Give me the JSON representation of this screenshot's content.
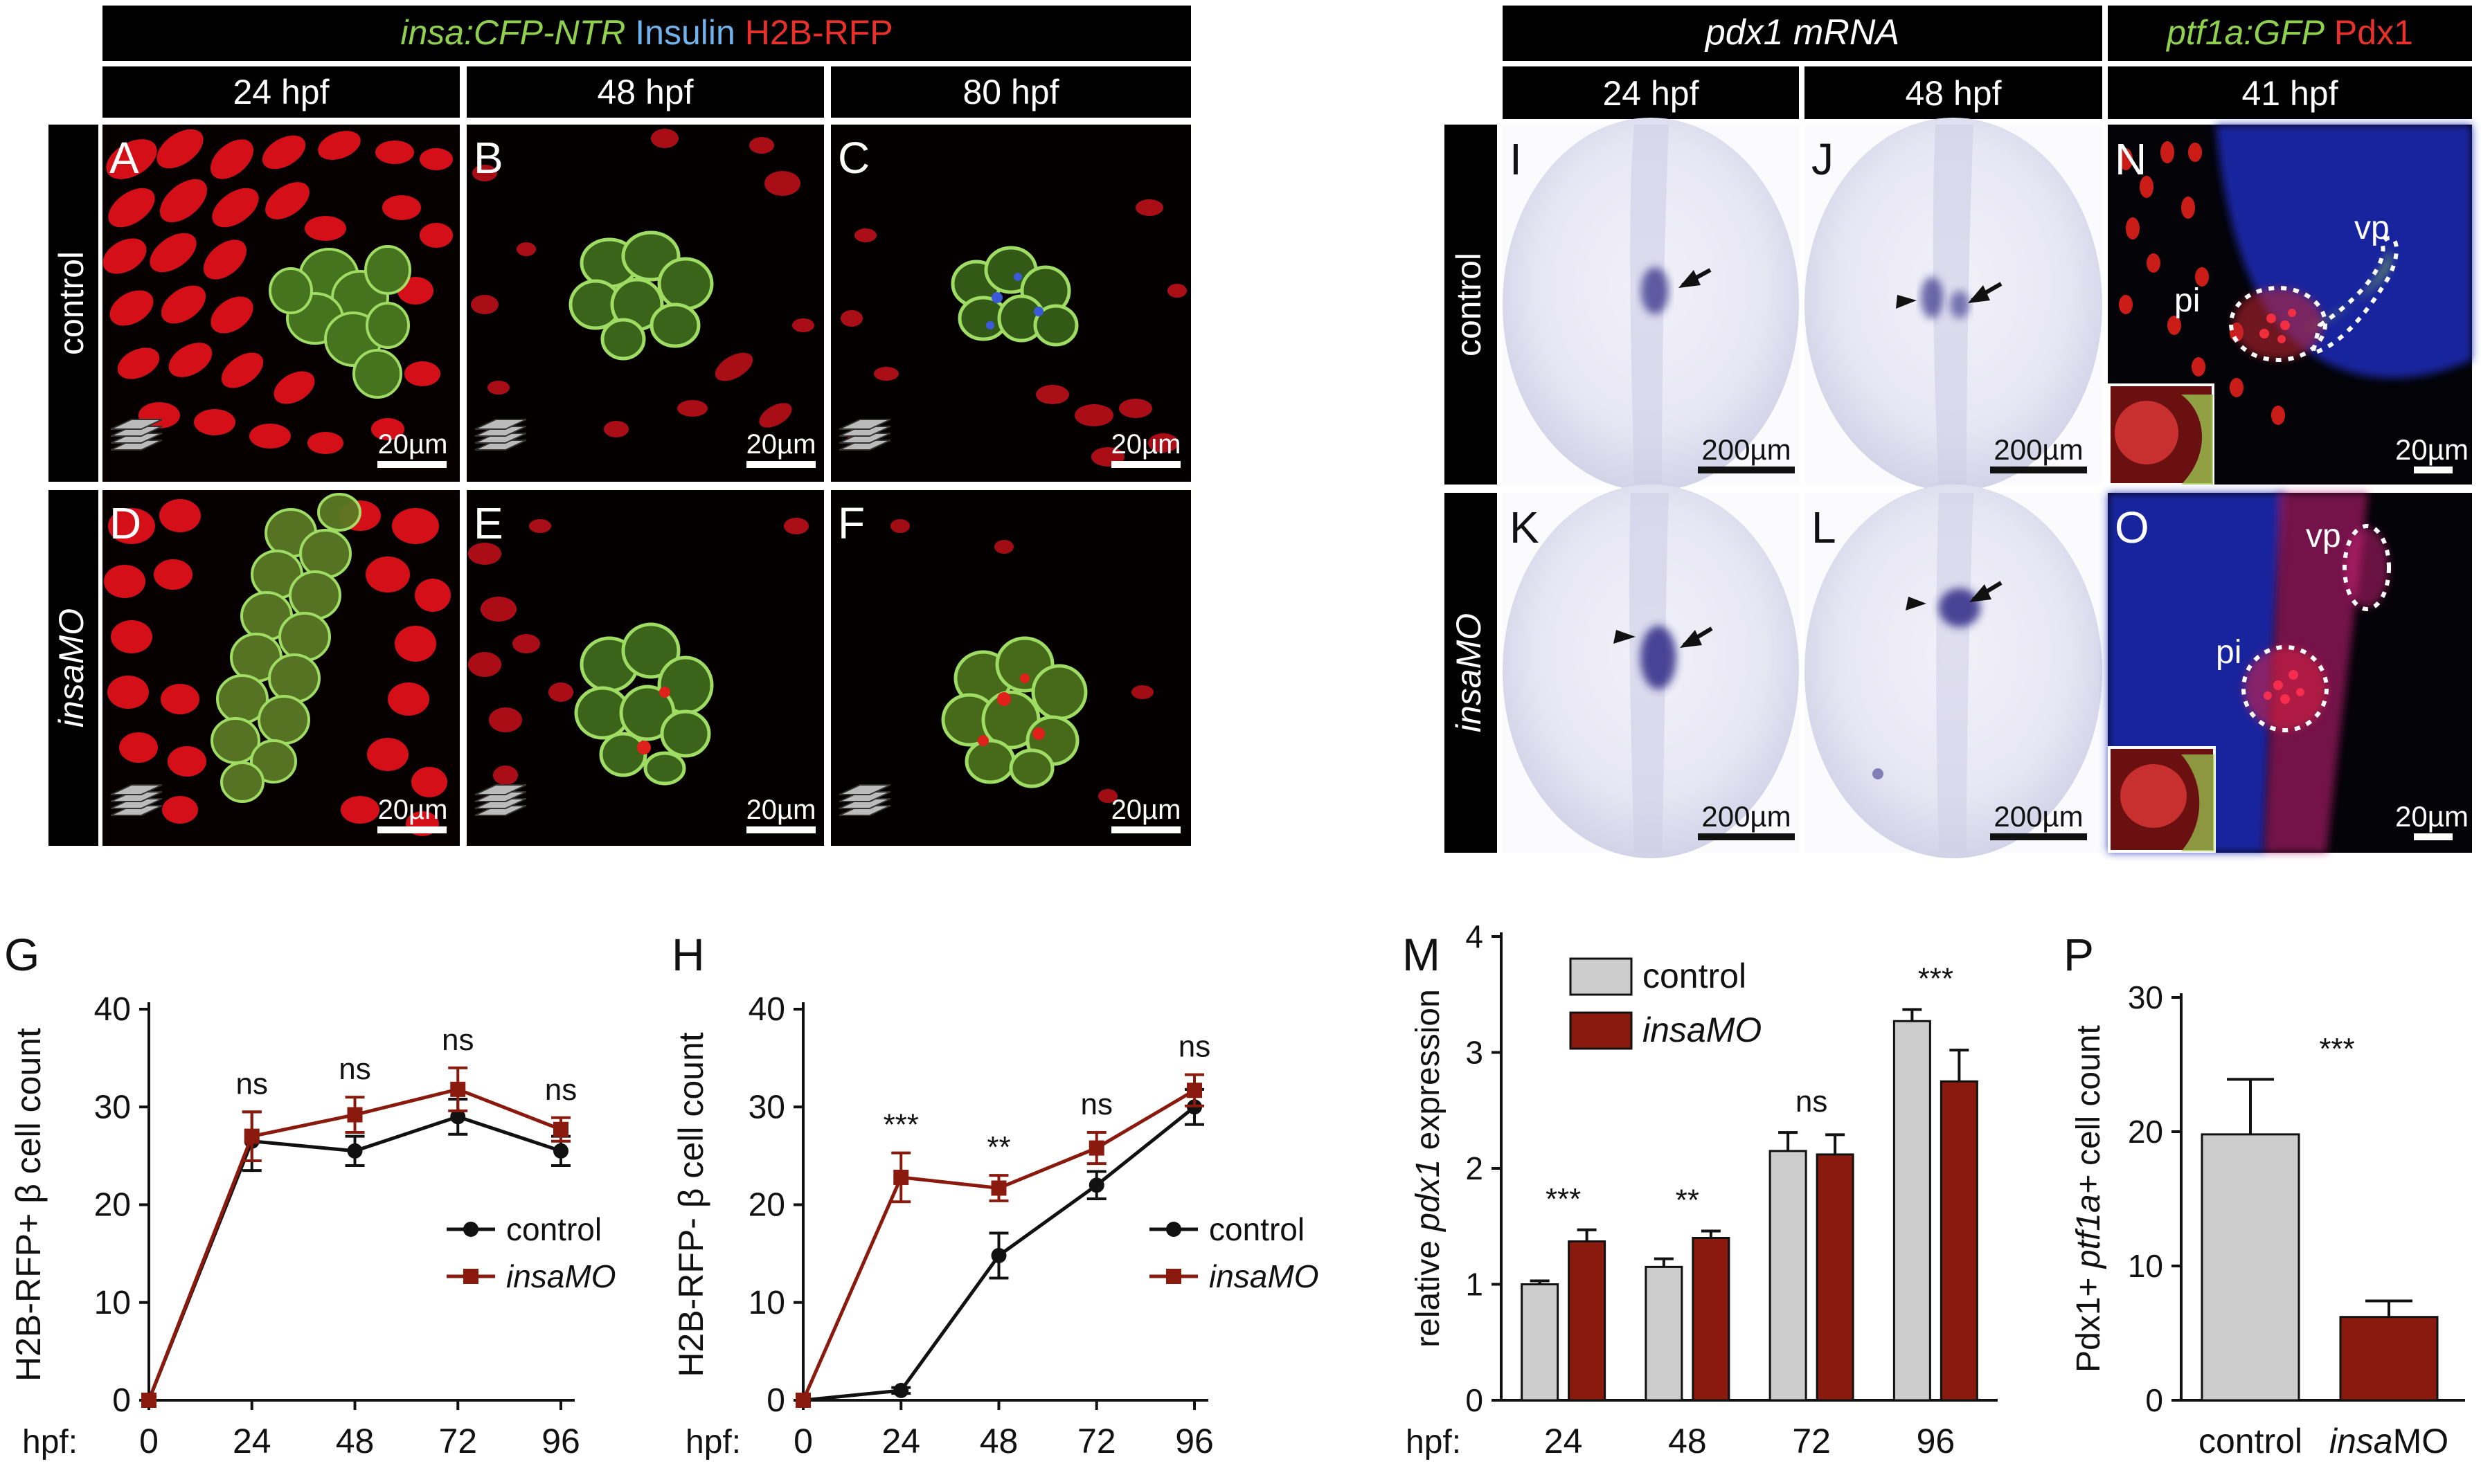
{
  "header": {
    "marker_a": "insa:CFP-NTR",
    "marker_b": "Insulin",
    "marker_c": "H2B-RFP",
    "time_24": "24 hpf",
    "time_48": "48 hpf",
    "time_80": "80 hpf",
    "pdx1_title": "pdx1 mRNA",
    "pdx1_24": "24 hpf",
    "pdx1_48": "48 hpf",
    "ptf_marker_a": "ptf1a:GFP",
    "ptf_marker_b": "Pdx1",
    "ptf_time": "41 hpf"
  },
  "rows": {
    "control": "control",
    "morphant": "insaMO"
  },
  "colors": {
    "green": "#8fd14f",
    "blue": "#6fb2ec",
    "red": "#e8312a",
    "dark_red": "#8b1a0e",
    "grey_bar": "#cccccc"
  },
  "panels": {
    "A": {
      "letter": "A",
      "scale": "20µm"
    },
    "B": {
      "letter": "B",
      "scale": "20µm"
    },
    "C": {
      "letter": "C",
      "scale": "20µm"
    },
    "D": {
      "letter": "D",
      "scale": "20µm"
    },
    "E": {
      "letter": "E",
      "scale": "20µm"
    },
    "F": {
      "letter": "F",
      "scale": "20µm"
    },
    "I": {
      "letter": "I",
      "scale": "200µm"
    },
    "J": {
      "letter": "J",
      "scale": "200µm"
    },
    "K": {
      "letter": "K",
      "scale": "200µm"
    },
    "L": {
      "letter": "L",
      "scale": "200µm"
    },
    "N": {
      "letter": "N",
      "scale": "20µm",
      "region_1": "pi",
      "region_2": "vp"
    },
    "O": {
      "letter": "O",
      "scale": "20µm",
      "region_1": "pi",
      "region_2": "vp"
    }
  },
  "chart_data": [
    {
      "panel": "G",
      "type": "line",
      "ylabel": "H2B-RFP+  β cell count",
      "x_prefix": "hpf:",
      "x": [
        0,
        24,
        48,
        72,
        96
      ],
      "ylim": [
        0,
        40
      ],
      "yticks": [
        0,
        10,
        20,
        30,
        40
      ],
      "series": [
        {
          "name": "control",
          "values": [
            0,
            26.5,
            25.5,
            29,
            25.5
          ],
          "err": [
            0,
            3,
            1.5,
            1.8,
            1.5
          ]
        },
        {
          "name": "insaMO",
          "values": [
            0,
            27,
            29.2,
            31.8,
            27.7
          ],
          "err": [
            0,
            2.5,
            1.8,
            2.2,
            1.2
          ]
        }
      ],
      "significance": [
        "ns",
        "ns",
        "ns",
        "ns"
      ],
      "legend": "bottom-right"
    },
    {
      "panel": "H",
      "type": "line",
      "ylabel": "H2B-RFP-  β cell count",
      "x_prefix": "hpf:",
      "x": [
        0,
        24,
        48,
        72,
        96
      ],
      "ylim": [
        0,
        40
      ],
      "yticks": [
        0,
        10,
        20,
        30,
        40
      ],
      "series": [
        {
          "name": "control",
          "values": [
            0,
            1,
            14.8,
            22,
            30
          ],
          "err": [
            0,
            0.3,
            2.3,
            1.4,
            1.8
          ]
        },
        {
          "name": "insaMO",
          "values": [
            0,
            22.8,
            21.7,
            25.8,
            31.7
          ],
          "err": [
            0,
            2.5,
            1.3,
            1.6,
            1.6
          ]
        }
      ],
      "significance": [
        "***",
        "**",
        "ns",
        "ns"
      ],
      "legend": "bottom-right"
    },
    {
      "panel": "M",
      "type": "bar",
      "ylabel_pre": "relative ",
      "ylabel_gene": "pdx1",
      "ylabel_post": " expression",
      "x_prefix": "hpf:",
      "categories": [
        "24",
        "48",
        "72",
        "96"
      ],
      "ylim": [
        0,
        4
      ],
      "yticks": [
        0,
        1,
        2,
        3,
        4
      ],
      "series": [
        {
          "name": "control",
          "values": [
            1.0,
            1.15,
            2.15,
            3.27
          ],
          "err": [
            0.03,
            0.07,
            0.16,
            0.1
          ]
        },
        {
          "name": "insaMO",
          "values": [
            1.37,
            1.4,
            2.12,
            2.75
          ],
          "err": [
            0.1,
            0.06,
            0.17,
            0.27
          ]
        }
      ],
      "significance": [
        "***",
        "**",
        "ns",
        "***"
      ],
      "legend": "top-left"
    },
    {
      "panel": "P",
      "type": "bar",
      "ylabel_pre": "Pdx1+ ",
      "ylabel_gene": "ptf1a+",
      "ylabel_post": " cell count",
      "categories": [
        "control",
        "insaMO"
      ],
      "ylim": [
        0,
        30
      ],
      "yticks": [
        0,
        10,
        20,
        30
      ],
      "values": [
        19.8,
        6.2
      ],
      "err": [
        4.1,
        1.2
      ],
      "significance": "***"
    }
  ]
}
